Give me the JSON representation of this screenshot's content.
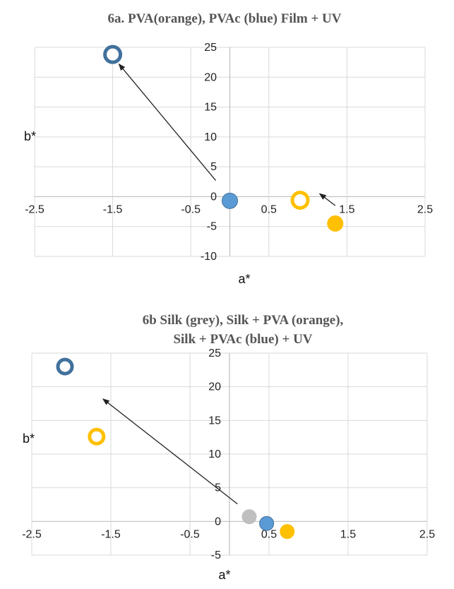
{
  "chart_data": [
    {
      "type": "scatter",
      "title_lines": [
        "6a. PVA(orange), PVAc (blue) Film + UV"
      ],
      "xlabel": "a*",
      "ylabel": "b*",
      "xlim": [
        -2.5,
        2.5
      ],
      "ylim": [
        -10,
        25
      ],
      "xticks": [
        -2.5,
        -1.5,
        -0.5,
        0.5,
        1.5,
        2.5
      ],
      "xtick_labels": [
        "-2.5",
        "-1.5",
        "-0.5",
        "0.5",
        "1.5",
        "2.5"
      ],
      "yticks": [
        -10,
        -5,
        0,
        5,
        10,
        15,
        20,
        25
      ],
      "ytick_labels": [
        "-10",
        "-5",
        "0",
        "5",
        "10",
        "15",
        "20",
        "25"
      ],
      "series": [
        {
          "name": "PVAc film",
          "color": "#5b9bd5",
          "style": "filled",
          "x": 0.0,
          "y": -0.7
        },
        {
          "name": "PVAc film + UV",
          "color": "#41719c",
          "style": "hollow",
          "x": -1.5,
          "y": 23.8
        },
        {
          "name": "PVA film",
          "color": "#ffc000",
          "style": "filled",
          "x": 1.35,
          "y": -4.5
        },
        {
          "name": "PVA film + UV",
          "color": "#ffc000",
          "style": "hollow",
          "x": 0.9,
          "y": -0.6
        }
      ],
      "arrows": [
        {
          "from": [
            -0.18,
            2.7
          ],
          "to": [
            -1.42,
            22.2
          ]
        },
        {
          "from": [
            1.35,
            -1.5
          ],
          "to": [
            1.15,
            0.5
          ]
        }
      ]
    },
    {
      "type": "scatter",
      "title_lines": [
        "6b Silk (grey), Silk + PVA (orange),",
        "Silk + PVAc (blue) + UV"
      ],
      "xlabel": "a*",
      "ylabel": "b*",
      "xlim": [
        -2.5,
        2.5
      ],
      "ylim": [
        -5,
        25
      ],
      "xticks": [
        -2.5,
        -1.5,
        -0.5,
        0.5,
        1.5,
        2.5
      ],
      "xtick_labels": [
        "-2.5",
        "-1.5",
        "-0.5",
        "0.5",
        "1.5",
        "2.5"
      ],
      "yticks": [
        -5,
        0,
        5,
        10,
        15,
        20,
        25
      ],
      "ytick_labels": [
        "-5",
        "0",
        "5",
        "10",
        "15",
        "20",
        "25"
      ],
      "series": [
        {
          "name": "Silk",
          "color": "#bfbfbf",
          "style": "filled",
          "x": 0.25,
          "y": 0.7
        },
        {
          "name": "Silk + PVAc",
          "color": "#5b9bd5",
          "style": "filled",
          "x": 0.47,
          "y": -0.3
        },
        {
          "name": "Silk + PVA",
          "color": "#ffc000",
          "style": "filled",
          "x": 0.73,
          "y": -1.5
        },
        {
          "name": "Silk + PVAc + UV",
          "color": "#41719c",
          "style": "hollow",
          "x": -2.08,
          "y": 23.0
        },
        {
          "name": "Silk + PVA + UV",
          "color": "#ffc000",
          "style": "hollow",
          "x": -1.68,
          "y": 12.6
        }
      ],
      "arrows": [
        {
          "from": [
            0.1,
            2.6
          ],
          "to": [
            -1.6,
            18.2
          ]
        }
      ]
    }
  ]
}
